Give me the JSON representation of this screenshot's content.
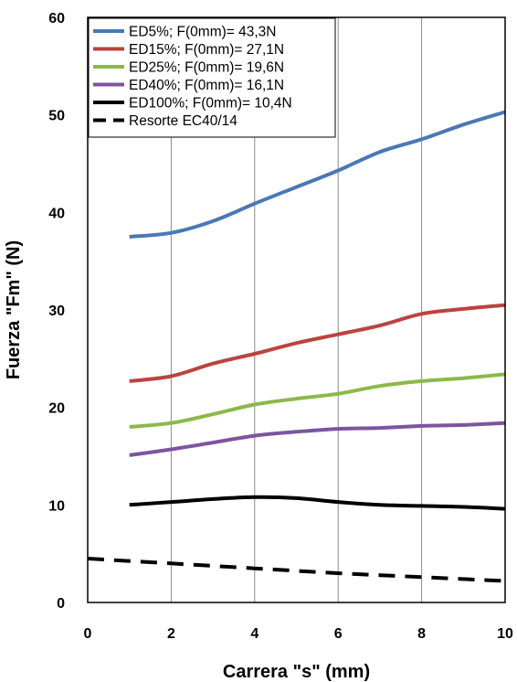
{
  "chart_data": {
    "type": "line",
    "title": "",
    "xlabel": "Carrera \"s\" (mm)",
    "ylabel": "Fuerza \"Fm\"  (N)",
    "xlim": [
      0,
      10
    ],
    "ylim": [
      0,
      60
    ],
    "xticks": [
      0,
      2,
      4,
      6,
      8,
      10
    ],
    "yticks": [
      0,
      10,
      20,
      30,
      40,
      50,
      60
    ],
    "grid": "vertical",
    "legend_position": "top-left",
    "series": [
      {
        "name": "ED5%; F(0mm)= 43,3N",
        "color": "#4a78b5",
        "dash": false,
        "x": [
          1,
          2,
          3,
          4,
          5,
          6,
          7,
          8,
          9,
          10
        ],
        "values": [
          37.5,
          37.9,
          39.1,
          40.9,
          42.6,
          44.3,
          46.2,
          47.5,
          49.0,
          50.3
        ]
      },
      {
        "name": "ED15%; F(0mm)= 27,1N",
        "color": "#bb4340",
        "dash": false,
        "x": [
          1,
          2,
          3,
          4,
          5,
          6,
          7,
          8,
          9,
          10
        ],
        "values": [
          22.7,
          23.2,
          24.5,
          25.5,
          26.6,
          27.5,
          28.4,
          29.6,
          30.1,
          30.5
        ]
      },
      {
        "name": "ED25%; F(0mm)= 19,6N",
        "color": "#8db84a",
        "dash": false,
        "x": [
          1,
          2,
          3,
          4,
          5,
          6,
          7,
          8,
          9,
          10
        ],
        "values": [
          18.0,
          18.4,
          19.3,
          20.3,
          20.9,
          21.4,
          22.2,
          22.7,
          23.0,
          23.4
        ]
      },
      {
        "name": "ED40%; F(0mm)= 16,1N",
        "color": "#7b55a0",
        "dash": false,
        "x": [
          1,
          2,
          3,
          4,
          5,
          6,
          7,
          8,
          9,
          10
        ],
        "values": [
          15.1,
          15.7,
          16.4,
          17.1,
          17.5,
          17.8,
          17.9,
          18.1,
          18.2,
          18.4
        ]
      },
      {
        "name": "ED100%; F(0mm)= 10,4N",
        "color": "#000000",
        "dash": false,
        "x": [
          1,
          2,
          3,
          4,
          5,
          6,
          7,
          8,
          9,
          10
        ],
        "values": [
          10.0,
          10.3,
          10.6,
          10.8,
          10.7,
          10.3,
          10.0,
          9.9,
          9.8,
          9.6
        ]
      },
      {
        "name": "Resorte EC40/14",
        "color": "#000000",
        "dash": true,
        "x": [
          0,
          2,
          4,
          6,
          8,
          10
        ],
        "values": [
          4.5,
          4.0,
          3.5,
          3.0,
          2.6,
          2.2
        ]
      }
    ]
  }
}
